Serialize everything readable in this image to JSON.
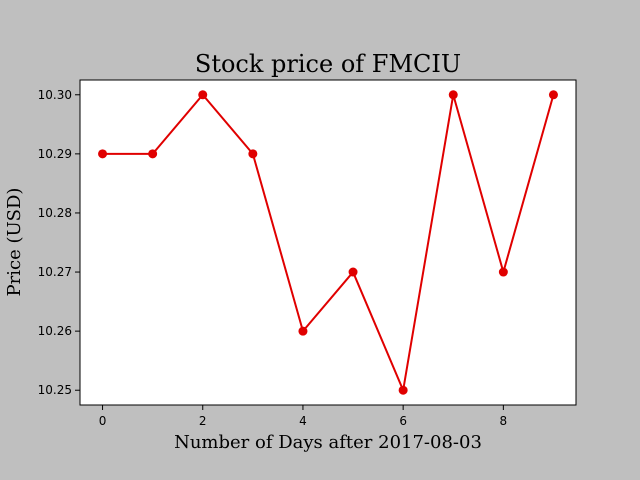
{
  "chart_data": {
    "type": "line",
    "title": "Stock price of FMCIU",
    "xlabel": "Number of Days after 2017-08-03",
    "ylabel": "Price (USD)",
    "x": [
      0,
      1,
      2,
      3,
      4,
      5,
      6,
      7,
      8,
      9
    ],
    "series": [
      {
        "name": "",
        "values": [
          10.29,
          10.29,
          10.3,
          10.29,
          10.26,
          10.27,
          10.25,
          10.3,
          10.27,
          10.3
        ]
      }
    ],
    "xlim": [
      -0.45,
      9.45
    ],
    "ylim": [
      10.2475,
      10.3025
    ],
    "xticks": [
      "0",
      "2",
      "4",
      "6",
      "8"
    ],
    "yticks": [
      "10.25",
      "10.26",
      "10.27",
      "10.28",
      "10.29",
      "10.30"
    ],
    "grid": false,
    "colors": {
      "line": "#e00000",
      "background": "#bfbfbf",
      "plot_area": "#ffffff"
    }
  }
}
